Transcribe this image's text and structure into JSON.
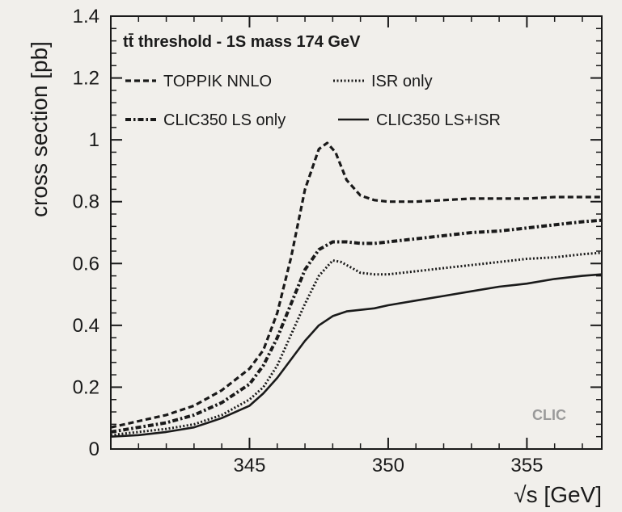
{
  "chart_data": {
    "type": "line",
    "title": "tt̄ threshold - 1S mass 174 GeV",
    "xlabel": "√s [GeV]",
    "ylabel": "cross section [pb]",
    "xlim": [
      340.0,
      357.7
    ],
    "ylim": [
      0,
      1.4
    ],
    "xticks": [
      345,
      350,
      355
    ],
    "yticks": [
      0,
      0.2,
      0.4,
      0.6,
      0.8,
      1,
      1.2,
      1.4
    ],
    "yticklabels": [
      "0",
      "0.2",
      "0.4",
      "0.6",
      "0.8",
      "1",
      "1.2",
      "1.4"
    ],
    "legend_position": "top-left",
    "annotation": "CLIC",
    "grid": false,
    "series": [
      {
        "name": "TOPPIK NNLO",
        "style": "dashed",
        "x": [
          340.0,
          341,
          342,
          343,
          344,
          345,
          345.5,
          346,
          346.5,
          347,
          347.5,
          347.8,
          348.1,
          348.5,
          349,
          349.5,
          350,
          351,
          352,
          353,
          354,
          355,
          356,
          357,
          357.7
        ],
        "y": [
          0.07,
          0.09,
          0.11,
          0.14,
          0.19,
          0.26,
          0.32,
          0.44,
          0.62,
          0.84,
          0.97,
          0.99,
          0.96,
          0.87,
          0.82,
          0.805,
          0.8,
          0.8,
          0.805,
          0.81,
          0.81,
          0.81,
          0.815,
          0.815,
          0.815
        ]
      },
      {
        "name": "ISR only",
        "style": "dotted",
        "x": [
          340.0,
          341,
          342,
          343,
          344,
          345,
          345.5,
          346,
          346.5,
          347,
          347.5,
          348,
          348.3,
          348.7,
          349,
          349.5,
          350,
          351,
          352,
          353,
          354,
          355,
          356,
          357,
          357.7
        ],
        "y": [
          0.045,
          0.055,
          0.065,
          0.08,
          0.11,
          0.16,
          0.2,
          0.27,
          0.37,
          0.47,
          0.56,
          0.61,
          0.605,
          0.585,
          0.57,
          0.565,
          0.565,
          0.575,
          0.585,
          0.595,
          0.605,
          0.615,
          0.62,
          0.63,
          0.635
        ]
      },
      {
        "name": "CLIC350 LS only",
        "style": "dash-dot",
        "x": [
          340.0,
          341,
          342,
          343,
          344,
          345,
          345.5,
          346,
          346.5,
          347,
          347.5,
          348,
          348.5,
          349,
          349.5,
          350,
          351,
          352,
          353,
          354,
          355,
          356,
          357,
          357.7
        ],
        "y": [
          0.055,
          0.07,
          0.085,
          0.11,
          0.15,
          0.21,
          0.27,
          0.36,
          0.47,
          0.58,
          0.645,
          0.67,
          0.67,
          0.665,
          0.665,
          0.67,
          0.68,
          0.69,
          0.7,
          0.705,
          0.715,
          0.725,
          0.735,
          0.74
        ]
      },
      {
        "name": "CLIC350 LS+ISR",
        "style": "solid",
        "x": [
          340.0,
          341,
          342,
          343,
          344,
          345,
          345.5,
          346,
          346.5,
          347,
          347.5,
          348,
          348.5,
          349,
          349.5,
          350,
          351,
          352,
          353,
          354,
          355,
          356,
          357,
          357.7
        ],
        "y": [
          0.04,
          0.045,
          0.055,
          0.07,
          0.1,
          0.14,
          0.18,
          0.23,
          0.29,
          0.35,
          0.4,
          0.43,
          0.445,
          0.45,
          0.455,
          0.465,
          0.48,
          0.495,
          0.51,
          0.525,
          0.535,
          0.55,
          0.56,
          0.565
        ]
      }
    ]
  }
}
